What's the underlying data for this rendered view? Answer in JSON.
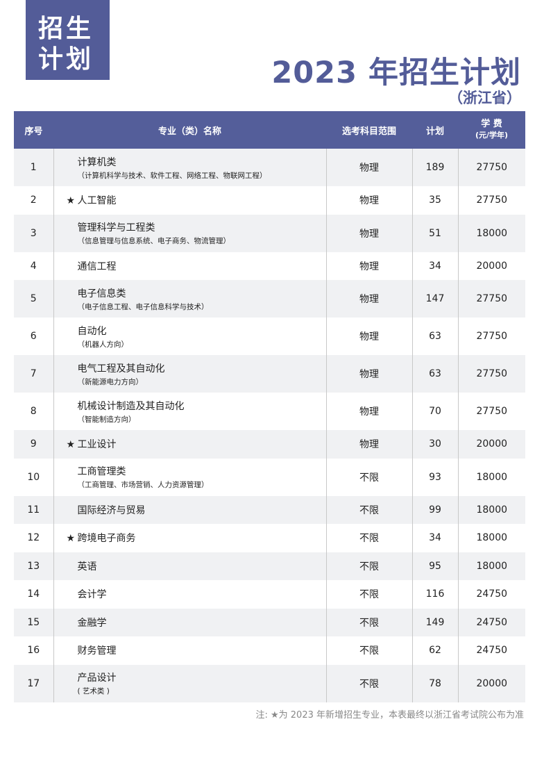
{
  "badge": {
    "line1": "招生",
    "line2": "计划"
  },
  "title": "2023 年招生计划",
  "subtitle": "（浙江省）",
  "table": {
    "headers": {
      "no": "序号",
      "name": "专业（类）名称",
      "subjects": "选考科目范围",
      "plan": "计划",
      "fee": "学 费",
      "fee_unit": "(元/学年)"
    },
    "rows": [
      {
        "no": "1",
        "star": "",
        "name": "计算机类",
        "detail": "（计算机科学与技术、软件工程、网络工程、物联网工程）",
        "subjects": "物理",
        "plan": "189",
        "fee": "27750"
      },
      {
        "no": "2",
        "star": "★",
        "name": "人工智能",
        "detail": "",
        "subjects": "物理",
        "plan": "35",
        "fee": "27750"
      },
      {
        "no": "3",
        "star": "",
        "name": "管理科学与工程类",
        "detail": "（信息管理与信息系统、电子商务、物流管理）",
        "subjects": "物理",
        "plan": "51",
        "fee": "18000"
      },
      {
        "no": "4",
        "star": "",
        "name": "通信工程",
        "detail": "",
        "subjects": "物理",
        "plan": "34",
        "fee": "20000"
      },
      {
        "no": "5",
        "star": "",
        "name": "电子信息类",
        "detail": "（电子信息工程、电子信息科学与技术）",
        "subjects": "物理",
        "plan": "147",
        "fee": "27750"
      },
      {
        "no": "6",
        "star": "",
        "name": "自动化",
        "detail": "（机器人方向）",
        "subjects": "物理",
        "plan": "63",
        "fee": "27750"
      },
      {
        "no": "7",
        "star": "",
        "name": "电气工程及其自动化",
        "detail": "（新能源电力方向）",
        "subjects": "物理",
        "plan": "63",
        "fee": "27750"
      },
      {
        "no": "8",
        "star": "",
        "name": "机械设计制造及其自动化",
        "detail": "（智能制造方向）",
        "subjects": "物理",
        "plan": "70",
        "fee": "27750"
      },
      {
        "no": "9",
        "star": "★",
        "name": "工业设计",
        "detail": "",
        "subjects": "物理",
        "plan": "30",
        "fee": "20000"
      },
      {
        "no": "10",
        "star": "",
        "name": "工商管理类",
        "detail": "（工商管理、市场营销、人力资源管理）",
        "subjects": "不限",
        "plan": "93",
        "fee": "18000"
      },
      {
        "no": "11",
        "star": "",
        "name": "国际经济与贸易",
        "detail": "",
        "subjects": "不限",
        "plan": "99",
        "fee": "18000"
      },
      {
        "no": "12",
        "star": "★",
        "name": "跨境电子商务",
        "detail": "",
        "subjects": "不限",
        "plan": "34",
        "fee": "18000"
      },
      {
        "no": "13",
        "star": "",
        "name": "英语",
        "detail": "",
        "subjects": "不限",
        "plan": "95",
        "fee": "18000"
      },
      {
        "no": "14",
        "star": "",
        "name": "会计学",
        "detail": "",
        "subjects": "不限",
        "plan": "116",
        "fee": "24750"
      },
      {
        "no": "15",
        "star": "",
        "name": "金融学",
        "detail": "",
        "subjects": "不限",
        "plan": "149",
        "fee": "24750"
      },
      {
        "no": "16",
        "star": "",
        "name": "财务管理",
        "detail": "",
        "subjects": "不限",
        "plan": "62",
        "fee": "24750"
      },
      {
        "no": "17",
        "star": "",
        "name": "产品设计",
        "detail": "( 艺术类 )",
        "subjects": "不限",
        "plan": "78",
        "fee": "20000"
      }
    ]
  },
  "note": "注: ★为 2023 年新增招生专业，本表最终以浙江省考试院公布为准",
  "colors": {
    "accent": "#545e9a",
    "row_alt": "#f0f1f3"
  }
}
